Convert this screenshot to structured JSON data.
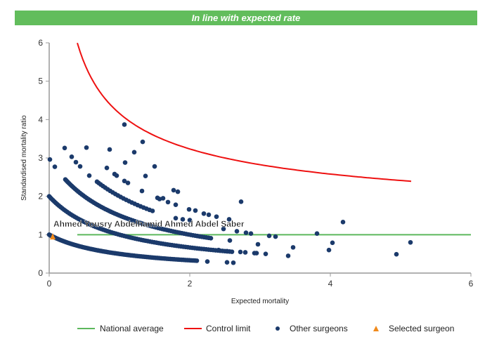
{
  "banner": {
    "text": "In line with expected rate",
    "color": "#62bd5c"
  },
  "chart_data": {
    "type": "scatter",
    "title": "In line with expected rate",
    "xlabel": "Expected mortality",
    "ylabel": "Standardised mortality ratio",
    "xlim": [
      0,
      6
    ],
    "ylim": [
      0,
      6
    ],
    "xticks": [
      "0",
      "2",
      "4",
      "6"
    ],
    "yticks": [
      "0",
      "1",
      "2",
      "3",
      "4",
      "5",
      "6"
    ],
    "grid": false,
    "legend_placement": "bottom",
    "legend": [
      "National average",
      "Control limit",
      "Other surgeons",
      "Selected surgeon"
    ],
    "colors": {
      "national": "#5cb85c",
      "control": "#ee1111",
      "others": "#1b3a6b",
      "selected": "#f08a1c"
    },
    "national_average": {
      "y": 1,
      "x_range": [
        0.4,
        6
      ]
    },
    "control_limit": {
      "formula": "1 + 3.16/sqrt(x)",
      "x_range": [
        0.4,
        5.15
      ]
    },
    "other_surgeons_bands": [
      {
        "deaths": 1,
        "x_range": [
          0,
          2.1
        ],
        "count": 90
      },
      {
        "deaths": 2,
        "x_range": [
          0,
          2.6
        ],
        "count": 90
      },
      {
        "deaths": 3,
        "x_range": [
          0.23,
          2.3
        ],
        "count": 75
      },
      {
        "deaths": 4,
        "x_range": [
          0.68,
          1.47
        ],
        "count": 22
      }
    ],
    "other_surgeons_points": [
      [
        0.01,
        2.96
      ],
      [
        0.08,
        2.77
      ],
      [
        0.22,
        3.26
      ],
      [
        0.32,
        3.03
      ],
      [
        0.38,
        2.89
      ],
      [
        0.44,
        2.78
      ],
      [
        0.53,
        3.27
      ],
      [
        0.57,
        2.54
      ],
      [
        0.82,
        2.74
      ],
      [
        0.86,
        3.22
      ],
      [
        0.93,
        2.58
      ],
      [
        0.96,
        2.54
      ],
      [
        1.07,
        3.87
      ],
      [
        1.08,
        2.88
      ],
      [
        1.07,
        2.4
      ],
      [
        1.12,
        2.35
      ],
      [
        1.21,
        3.15
      ],
      [
        1.33,
        3.42
      ],
      [
        1.37,
        2.53
      ],
      [
        1.32,
        2.14
      ],
      [
        1.5,
        2.78
      ],
      [
        1.54,
        1.96
      ],
      [
        1.57,
        1.93
      ],
      [
        1.69,
        1.85
      ],
      [
        1.77,
        2.16
      ],
      [
        1.83,
        2.12
      ],
      [
        1.8,
        1.78
      ],
      [
        1.8,
        1.43
      ],
      [
        1.99,
        1.66
      ],
      [
        2.08,
        1.63
      ],
      [
        2.2,
        1.55
      ],
      [
        2.27,
        1.52
      ],
      [
        2.38,
        1.47
      ],
      [
        2.56,
        1.4
      ],
      [
        2.48,
        1.15
      ],
      [
        2.73,
        1.86
      ],
      [
        2.67,
        1.09
      ],
      [
        2.8,
        1.05
      ],
      [
        2.87,
        1.03
      ],
      [
        2.57,
        0.85
      ],
      [
        2.41,
        0.6
      ],
      [
        2.53,
        0.57
      ],
      [
        2.72,
        0.55
      ],
      [
        2.79,
        0.54
      ],
      [
        2.92,
        0.52
      ],
      [
        2.95,
        0.52
      ],
      [
        3.08,
        0.5
      ],
      [
        2.97,
        0.75
      ],
      [
        2.53,
        0.28
      ],
      [
        2.62,
        0.27
      ],
      [
        2.25,
        0.3
      ],
      [
        3.13,
        0.97
      ],
      [
        3.22,
        0.95
      ],
      [
        3.4,
        0.45
      ],
      [
        3.47,
        0.67
      ],
      [
        3.81,
        1.03
      ],
      [
        3.98,
        0.6
      ],
      [
        4.03,
        0.79
      ],
      [
        4.18,
        1.33
      ],
      [
        4.94,
        0.49
      ],
      [
        5.14,
        0.8
      ],
      [
        1.62,
        1.95
      ],
      [
        1.9,
        1.4
      ],
      [
        2.0,
        1.38
      ]
    ],
    "selected_surgeon": {
      "name": "Ahmed Yousry Abdelhamid Ahmed Abdel Saber",
      "x": 0.05,
      "y": 0.95
    }
  }
}
